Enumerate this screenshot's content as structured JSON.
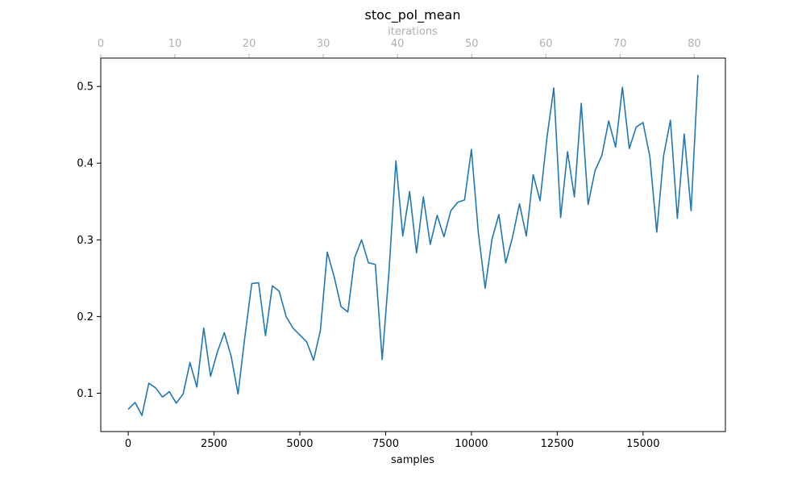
{
  "chart_data": {
    "type": "line",
    "title": "stoc_pol_mean",
    "xlabel": "samples",
    "ylabel": "",
    "top_xlabel": "iterations",
    "xlim": [
      -800,
      17400
    ],
    "ylim": [
      0.05,
      0.537
    ],
    "top_xlim": [
      0,
      84.2
    ],
    "x_ticks": [
      0,
      2500,
      5000,
      7500,
      10000,
      12500,
      15000
    ],
    "x_tick_labels": [
      "0",
      "2500",
      "5000",
      "7500",
      "10000",
      "12500",
      "15000"
    ],
    "y_ticks": [
      0.1,
      0.2,
      0.3,
      0.4,
      0.5
    ],
    "y_tick_labels": [
      "0.1",
      "0.2",
      "0.3",
      "0.4",
      "0.5"
    ],
    "top_ticks": [
      0,
      10,
      20,
      30,
      40,
      50,
      60,
      70,
      80
    ],
    "top_tick_labels": [
      "0",
      "10",
      "20",
      "30",
      "40",
      "50",
      "60",
      "70",
      "80"
    ],
    "grid": false,
    "line_color": "#1f77b4",
    "series": [
      {
        "x": [
          0,
          200,
          400,
          600,
          800,
          1000,
          1200,
          1400,
          1600,
          1800,
          2000,
          2200,
          2400,
          2600,
          2800,
          3000,
          3200,
          3400,
          3600,
          3800,
          4000,
          4200,
          4400,
          4600,
          4800,
          5000,
          5200,
          5400,
          5600,
          5800,
          6000,
          6200,
          6400,
          6600,
          6800,
          7000,
          7200,
          7400,
          7600,
          7800,
          8000,
          8200,
          8400,
          8600,
          8800,
          9000,
          9200,
          9400,
          9600,
          9800,
          10000,
          10200,
          10400,
          10600,
          10800,
          11000,
          11200,
          11400,
          11600,
          11800,
          12000,
          12200,
          12400,
          12600,
          12800,
          13000,
          13200,
          13400,
          13600,
          13800,
          14000,
          14200,
          14400,
          14600,
          14800,
          15000,
          15200,
          15400,
          15600,
          15800,
          16000,
          16200,
          16400,
          16600
        ],
        "y": [
          0.079,
          0.088,
          0.071,
          0.113,
          0.107,
          0.095,
          0.102,
          0.087,
          0.099,
          0.14,
          0.108,
          0.185,
          0.122,
          0.154,
          0.179,
          0.148,
          0.099,
          0.174,
          0.243,
          0.244,
          0.175,
          0.24,
          0.233,
          0.2,
          0.185,
          0.176,
          0.167,
          0.143,
          0.182,
          0.284,
          0.252,
          0.213,
          0.206,
          0.277,
          0.3,
          0.27,
          0.268,
          0.144,
          0.26,
          0.403,
          0.305,
          0.363,
          0.283,
          0.356,
          0.294,
          0.332,
          0.304,
          0.338,
          0.349,
          0.352,
          0.418,
          0.31,
          0.237,
          0.301,
          0.333,
          0.27,
          0.304,
          0.347,
          0.305,
          0.385,
          0.351,
          0.433,
          0.498,
          0.329,
          0.415,
          0.356,
          0.478,
          0.346,
          0.39,
          0.41,
          0.455,
          0.421,
          0.499,
          0.419,
          0.447,
          0.453,
          0.408,
          0.31,
          0.41,
          0.456,
          0.328,
          0.438,
          0.338,
          0.515
        ]
      }
    ]
  }
}
